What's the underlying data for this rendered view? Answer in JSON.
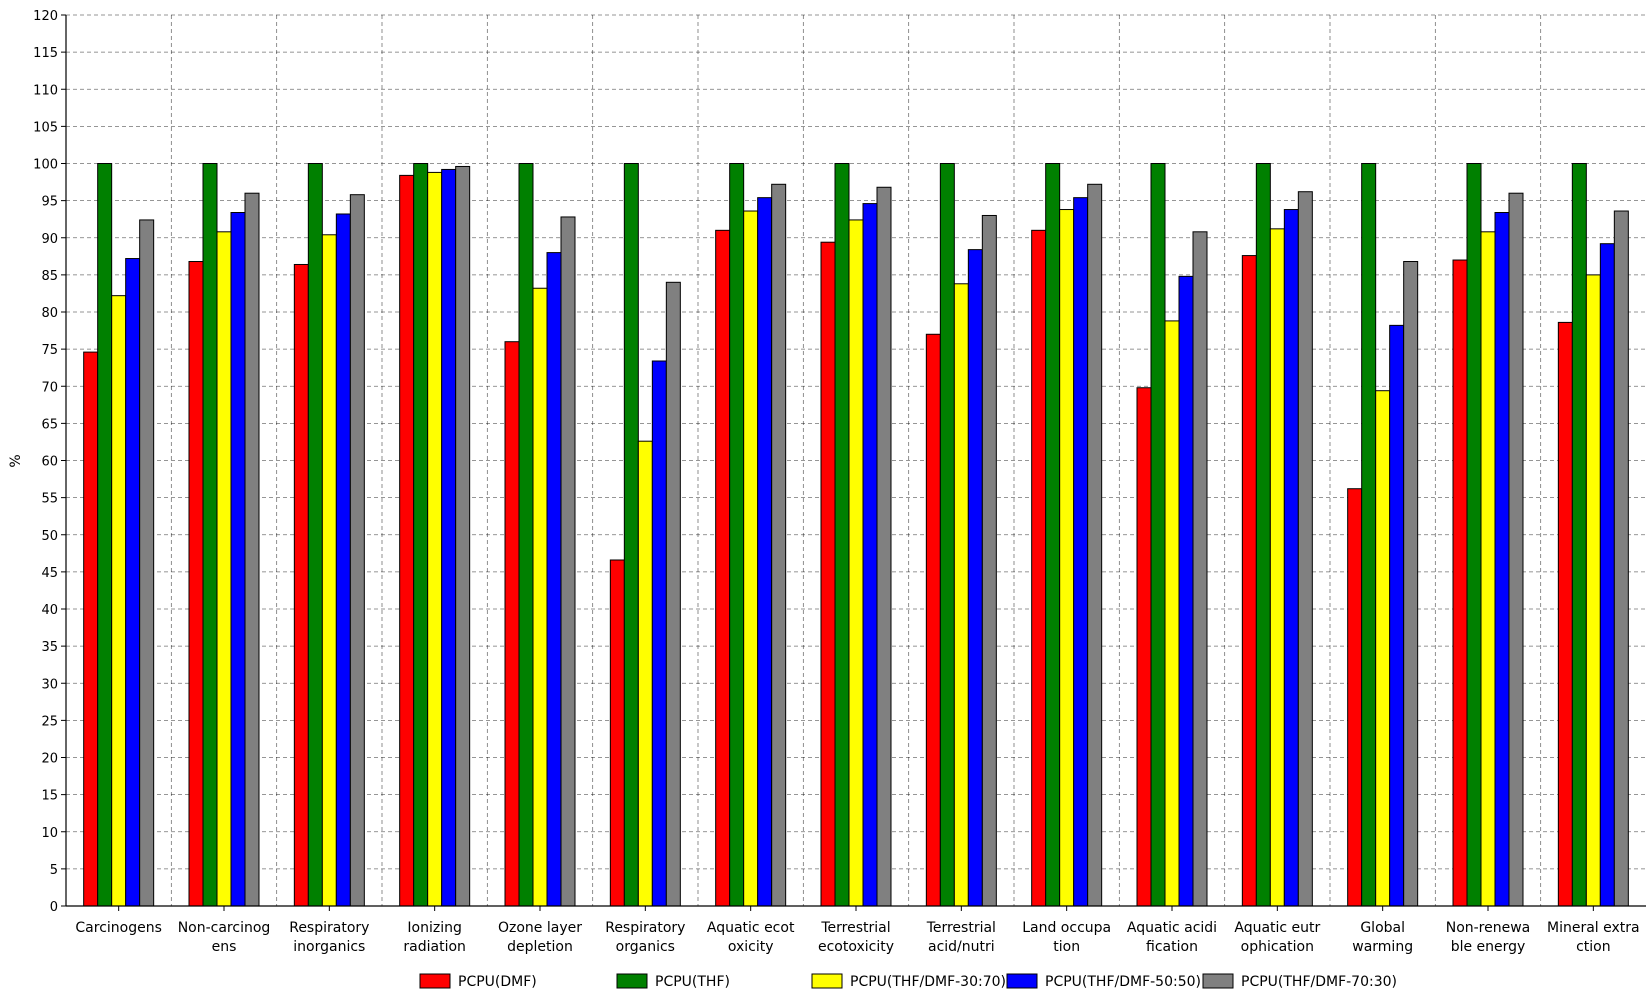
{
  "chart_data": {
    "type": "bar",
    "ylabel": "%",
    "ylim": [
      0,
      120
    ],
    "ytick_step": 5,
    "grid": true,
    "legend_position": "bottom",
    "categories": [
      [
        "Carcinogens"
      ],
      [
        "Non-carcinog",
        "ens"
      ],
      [
        "Respiratory",
        "inorganics"
      ],
      [
        "Ionizing",
        "radiation"
      ],
      [
        "Ozone layer",
        "depletion"
      ],
      [
        "Respiratory",
        "organics"
      ],
      [
        "Aquatic ecot",
        "oxicity"
      ],
      [
        "Terrestrial",
        "ecotoxicity"
      ],
      [
        "Terrestrial",
        "acid/nutri"
      ],
      [
        "Land occupa",
        "tion"
      ],
      [
        "Aquatic acidi",
        "fication"
      ],
      [
        "Aquatic eutr",
        "ophication"
      ],
      [
        "Global",
        "warming"
      ],
      [
        "Non-renewa",
        "ble energy"
      ],
      [
        "Mineral extra",
        "ction"
      ]
    ],
    "series": [
      {
        "name": "PCPU(DMF)",
        "color": "#ff0000",
        "values": [
          74.6,
          86.8,
          86.4,
          98.4,
          76.0,
          46.6,
          91.0,
          89.4,
          77.0,
          91.0,
          69.8,
          87.6,
          56.2,
          87.0,
          78.6
        ]
      },
      {
        "name": "PCPU(THF)",
        "color": "#008000",
        "values": [
          100,
          100,
          100,
          100,
          100,
          100,
          100,
          100,
          100,
          100,
          100,
          100,
          100,
          100,
          100
        ]
      },
      {
        "name": "PCPU(THF/DMF-30:70)",
        "color": "#ffff00",
        "values": [
          82.2,
          90.8,
          90.4,
          98.8,
          83.2,
          62.6,
          93.6,
          92.4,
          83.8,
          93.8,
          78.8,
          91.2,
          69.4,
          90.8,
          85.0
        ]
      },
      {
        "name": "PCPU(THF/DMF-50:50)",
        "color": "#0000ff",
        "values": [
          87.2,
          93.4,
          93.2,
          99.2,
          88.0,
          73.4,
          95.4,
          94.6,
          88.4,
          95.4,
          84.8,
          93.8,
          78.2,
          93.4,
          89.2
        ]
      },
      {
        "name": "PCPU(THF/DMF-70:30)",
        "color": "#808080",
        "values": [
          92.4,
          96.0,
          95.8,
          99.6,
          92.8,
          84.0,
          97.2,
          96.8,
          93.0,
          97.2,
          90.8,
          96.2,
          86.8,
          96.0,
          93.6
        ]
      }
    ]
  }
}
